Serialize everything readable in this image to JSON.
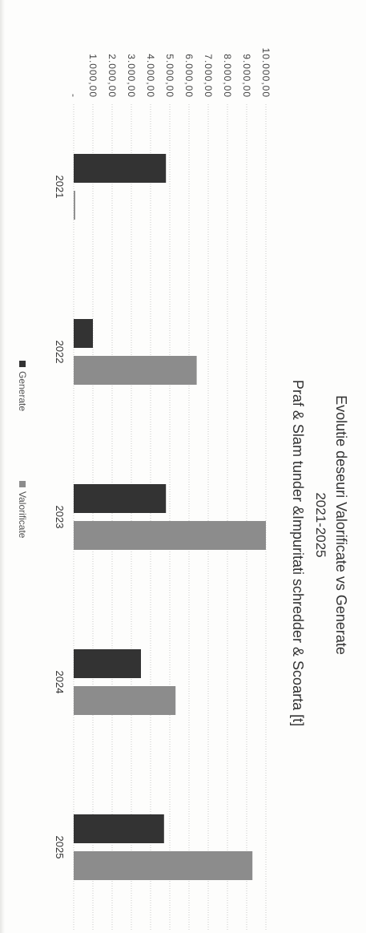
{
  "chart_data": {
    "type": "bar",
    "title": "Evolutie deseuri Valorificate vs Generate",
    "subtitle": "2021-2025",
    "subtitle2": "Praf & Slam tunder &Impuritati schredder & Scoarta [t]",
    "categories": [
      "2021",
      "2022",
      "2023",
      "2024",
      "2025"
    ],
    "series": [
      {
        "name": "Generate",
        "color": "#333333",
        "values": [
          4800,
          1000,
          4800,
          3500,
          4700
        ]
      },
      {
        "name": "Valorificate",
        "color": "#8c8c8c",
        "values": [
          80,
          6400,
          10000,
          5300,
          9300
        ]
      }
    ],
    "ylim": [
      0,
      10000
    ],
    "yticks": [
      "-",
      "1.000,00",
      "2.000,00",
      "3.000,00",
      "4.000,00",
      "5.000,00",
      "6.000,00",
      "7.000,00",
      "8.000,00",
      "9.000,00",
      "10.000,00"
    ],
    "grid": true,
    "legend_position": "bottom"
  }
}
